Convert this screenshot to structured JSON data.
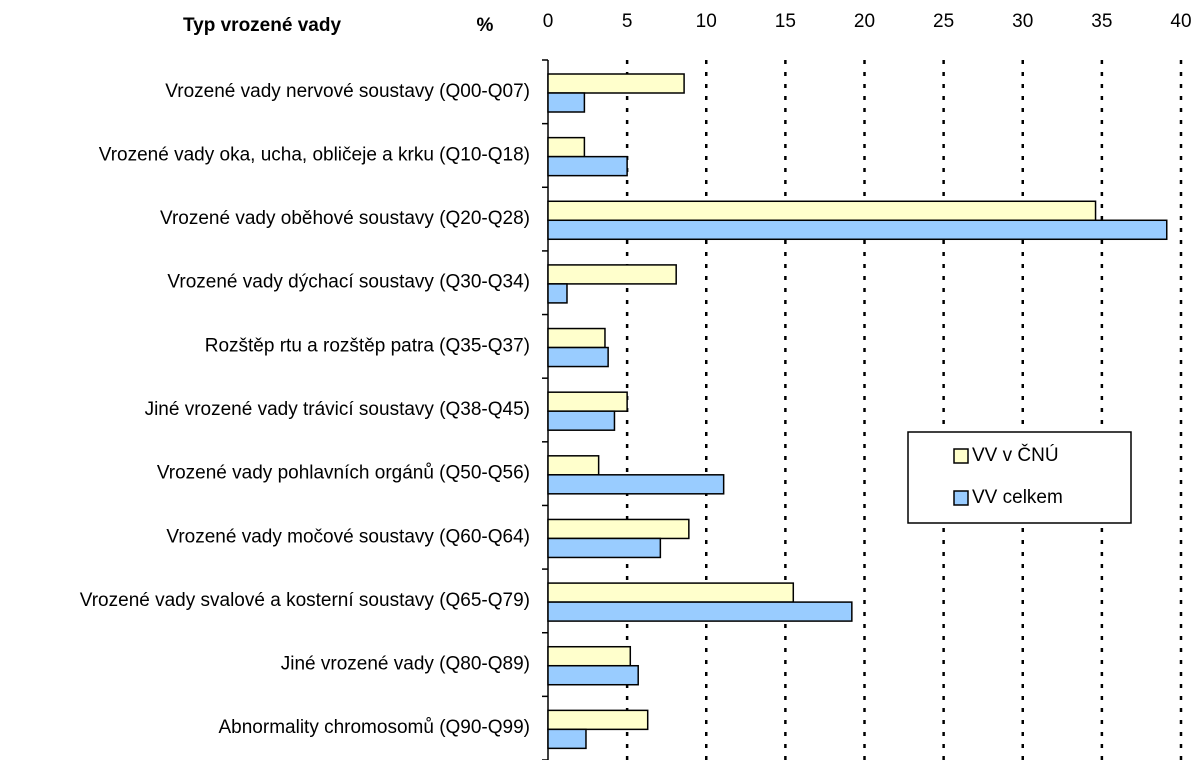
{
  "chart_data": {
    "type": "bar",
    "orientation": "horizontal",
    "category_header": "Typ vrozené vady",
    "value_header": "%",
    "categories": [
      "Vrozené vady nervové soustavy (Q00-Q07)",
      "Vrozené vady oka, ucha, obličeje a krku (Q10-Q18)",
      "Vrozené vady oběhové soustavy (Q20-Q28)",
      "Vrozené vady dýchací soustavy (Q30-Q34)",
      "Rozštěp rtu a rozštěp patra (Q35-Q37)",
      "Jiné vrozené vady trávicí soustavy (Q38-Q45)",
      "Vrozené vady pohlavních orgánů (Q50-Q56)",
      "Vrozené vady močové soustavy (Q60-Q64)",
      "Vrozené vady svalové a kosterní soustavy (Q65-Q79)",
      "Jiné vrozené vady (Q80-Q89)",
      "Abnormality chromosomů (Q90-Q99)"
    ],
    "series": [
      {
        "name": "VV v ČNÚ",
        "color": "#ffffcc",
        "values": [
          8.6,
          2.3,
          34.6,
          8.1,
          3.6,
          5.0,
          3.2,
          8.9,
          15.5,
          5.2,
          6.3
        ]
      },
      {
        "name": "VV celkem",
        "color": "#99ccff",
        "values": [
          2.3,
          5.0,
          39.1,
          1.2,
          3.8,
          4.2,
          11.1,
          7.1,
          19.2,
          5.7,
          2.4
        ]
      }
    ],
    "xlim": [
      0,
      40
    ],
    "xticks": [
      0,
      5,
      10,
      15,
      20,
      25,
      30,
      35,
      40
    ],
    "grid": true,
    "legend": "right"
  }
}
